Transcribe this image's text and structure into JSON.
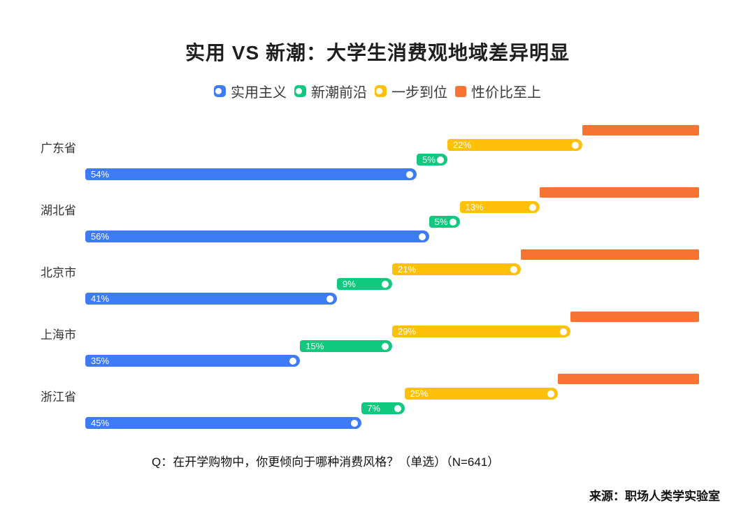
{
  "title": "实用 VS 新潮：大学生消费观地域差异明显",
  "legend": [
    {
      "label": "实用主义",
      "color": "#3D7BF7",
      "icon": "pill-dot-icon"
    },
    {
      "label": "新潮前沿",
      "color": "#10C97F",
      "icon": "pill-dot-icon"
    },
    {
      "label": "一步到位",
      "color": "#FFC00A",
      "icon": "pill-dot-icon"
    },
    {
      "label": "性价比至上",
      "color": "#F97333",
      "icon": "square-icon"
    }
  ],
  "chart_data": {
    "type": "bar",
    "subtype": "horizontal-cascading-stacked",
    "unit": "%",
    "xlim": [
      0,
      100
    ],
    "grid": false,
    "legend_position": "top-center",
    "categories": [
      "广东省",
      "湖北省",
      "北京市",
      "上海市",
      "浙江省"
    ],
    "series": [
      {
        "name": "实用主义",
        "color": "#3D7BF7",
        "values": [
          54,
          56,
          41,
          35,
          45
        ],
        "labels_visible": true
      },
      {
        "name": "新潮前沿",
        "color": "#10C97F",
        "values": [
          5,
          5,
          9,
          15,
          7
        ],
        "labels_visible": true
      },
      {
        "name": "一步到位",
        "color": "#FFC00A",
        "values": [
          22,
          13,
          21,
          29,
          25
        ],
        "labels_visible": true
      },
      {
        "name": "性价比至上",
        "color": "#F97333",
        "values": [
          19,
          26,
          29,
          21,
          23
        ],
        "labels_visible": false
      }
    ]
  },
  "footnote": "Q：在开学购物中，你更倾向于哪种消费风格？（单选）（N=641）",
  "source": "来源：职场人类学实验室"
}
